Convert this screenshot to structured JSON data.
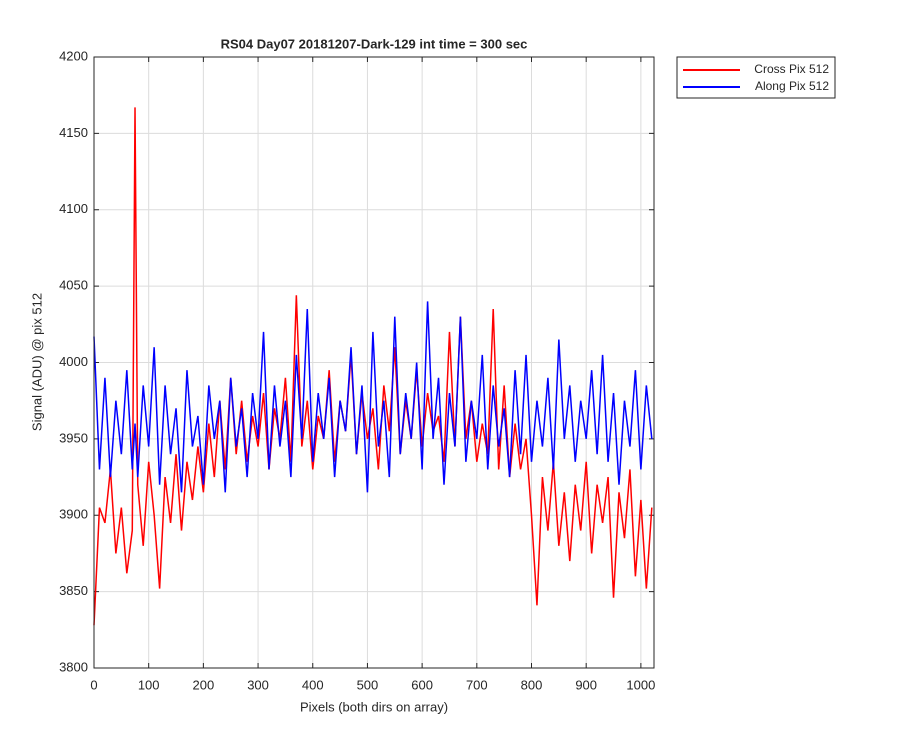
{
  "chart_data": {
    "type": "line",
    "title": "RS04 Day07 20181207-Dark-129 int time = 300 sec",
    "xlabel": "Pixels (both dirs on array)",
    "ylabel": "Signal (ADU) @ pix 512",
    "x": [
      0,
      10,
      20,
      30,
      40,
      50,
      60,
      70,
      75,
      80,
      90,
      100,
      110,
      120,
      130,
      140,
      150,
      160,
      170,
      180,
      190,
      200,
      210,
      220,
      230,
      240,
      250,
      260,
      270,
      280,
      290,
      300,
      310,
      320,
      330,
      340,
      350,
      360,
      370,
      380,
      390,
      400,
      410,
      420,
      430,
      440,
      450,
      460,
      470,
      480,
      490,
      500,
      510,
      520,
      530,
      540,
      550,
      560,
      570,
      580,
      590,
      600,
      610,
      620,
      630,
      640,
      650,
      660,
      670,
      680,
      690,
      700,
      710,
      720,
      730,
      740,
      750,
      760,
      770,
      780,
      790,
      800,
      810,
      820,
      830,
      840,
      850,
      860,
      870,
      880,
      890,
      900,
      910,
      920,
      930,
      940,
      950,
      960,
      970,
      980,
      990,
      1000,
      1010,
      1020
    ],
    "series": [
      {
        "name": "Cross Pix 512",
        "color": "#ff0000",
        "values": [
          3828,
          3905,
          3895,
          3930,
          3875,
          3905,
          3862,
          3890,
          4167,
          3920,
          3880,
          3935,
          3900,
          3852,
          3925,
          3895,
          3940,
          3890,
          3935,
          3910,
          3945,
          3915,
          3960,
          3925,
          3975,
          3930,
          3990,
          3940,
          3975,
          3935,
          3965,
          3945,
          3980,
          3930,
          3970,
          3950,
          3990,
          3935,
          4044,
          3945,
          3975,
          3930,
          3965,
          3950,
          3995,
          3935,
          3975,
          3955,
          4005,
          3940,
          3980,
          3950,
          3970,
          3930,
          3985,
          3955,
          4010,
          3940,
          3975,
          3950,
          3995,
          3945,
          3980,
          3955,
          3965,
          3935,
          4020,
          3945,
          4030,
          3950,
          3975,
          3935,
          3960,
          3940,
          4035,
          3930,
          3985,
          3925,
          3960,
          3930,
          3950,
          3900,
          3841,
          3925,
          3890,
          3935,
          3880,
          3915,
          3870,
          3920,
          3890,
          3935,
          3875,
          3920,
          3895,
          3925,
          3846,
          3915,
          3885,
          3930,
          3860,
          3910,
          3852,
          3905
        ]
      },
      {
        "name": "Along Pix 512",
        "color": "#0000ff",
        "values": [
          4017,
          3930,
          3990,
          3925,
          3975,
          3940,
          3995,
          3930,
          3960,
          3925,
          3985,
          3945,
          4010,
          3920,
          3985,
          3940,
          3970,
          3915,
          3995,
          3945,
          3965,
          3920,
          3985,
          3950,
          3975,
          3915,
          3990,
          3945,
          3970,
          3925,
          3980,
          3950,
          4020,
          3930,
          3985,
          3945,
          3975,
          3925,
          4005,
          3950,
          4035,
          3935,
          3980,
          3950,
          3990,
          3925,
          3975,
          3955,
          4010,
          3940,
          3985,
          3915,
          4020,
          3945,
          3975,
          3925,
          4030,
          3940,
          3980,
          3950,
          4000,
          3930,
          4040,
          3950,
          3990,
          3920,
          3980,
          3945,
          4030,
          3935,
          3975,
          3950,
          4005,
          3930,
          3985,
          3945,
          3970,
          3925,
          3995,
          3940,
          4005,
          3935,
          3975,
          3945,
          3990,
          3930,
          4015,
          3950,
          3985,
          3935,
          3975,
          3950,
          3995,
          3940,
          4005,
          3935,
          3980,
          3920,
          3975,
          3945,
          3995,
          3930,
          3985,
          3950
        ]
      }
    ],
    "xlim": [
      0,
      1024
    ],
    "xticks": [
      0,
      100,
      200,
      300,
      400,
      500,
      600,
      700,
      800,
      900,
      1000
    ],
    "ylim": [
      3800,
      4200
    ],
    "yticks": [
      3800,
      3850,
      3900,
      3950,
      4000,
      4050,
      4100,
      4150,
      4200
    ],
    "grid": true,
    "legend": "outside-top-right"
  }
}
